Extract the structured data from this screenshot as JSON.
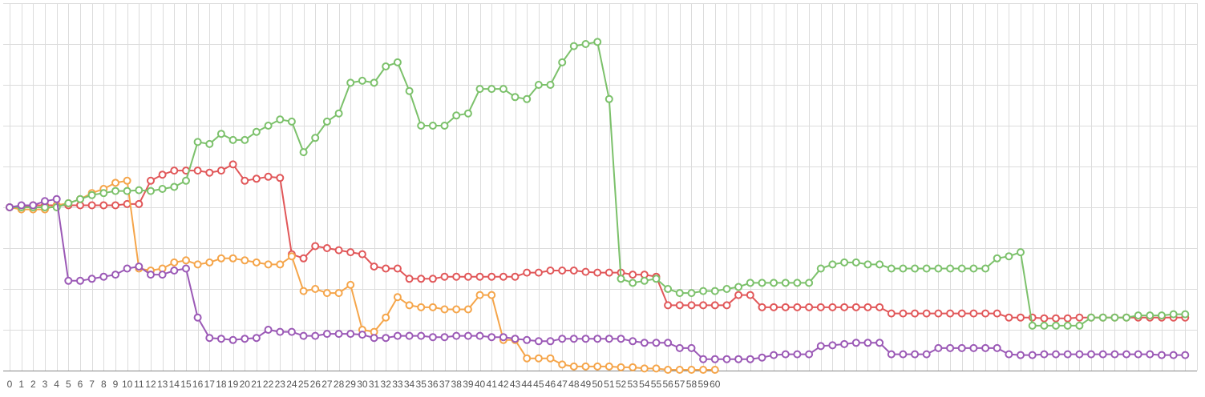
{
  "colors": {
    "background": "#ffffff",
    "grid": "#dcdcdc",
    "axis": "#888888",
    "tick_text": "#555555"
  },
  "chart_data": {
    "type": "line",
    "title": "",
    "xlabel": "",
    "ylabel": "",
    "grid": true,
    "legend": "none",
    "x_tick_labels": [
      "0",
      "1",
      "2",
      "3",
      "4",
      "5",
      "6",
      "7",
      "8",
      "9",
      "10",
      "11",
      "12",
      "13",
      "14",
      "15",
      "16",
      "17",
      "18",
      "19",
      "20",
      "21",
      "22",
      "23",
      "24",
      "25",
      "26",
      "27",
      "28",
      "29",
      "30",
      "31",
      "32",
      "33",
      "34",
      "35",
      "36",
      "37",
      "38",
      "39",
      "40",
      "41",
      "42",
      "43",
      "44",
      "45",
      "46",
      "47",
      "48",
      "49",
      "50",
      "51",
      "52",
      "53",
      "54",
      "55",
      "56",
      "57",
      "58",
      "59",
      "60"
    ],
    "xlim": [
      0,
      101
    ],
    "ylim": [
      0,
      9
    ],
    "series": [
      {
        "color": "#e15759",
        "x": [
          0,
          1,
          2,
          3,
          4,
          5,
          6,
          7,
          8,
          9,
          10,
          11,
          12,
          13,
          14,
          15,
          16,
          17,
          18,
          19,
          20,
          21,
          22,
          23,
          24,
          25,
          26,
          27,
          28,
          29,
          30,
          31,
          32,
          33,
          34,
          35,
          36,
          37,
          38,
          39,
          40,
          41,
          42,
          43,
          44,
          45,
          46,
          47,
          48,
          49,
          50,
          51,
          52,
          53,
          54,
          55,
          56,
          57,
          58,
          59,
          60,
          61,
          62,
          63,
          64,
          65,
          66,
          67,
          68,
          69,
          70,
          71,
          72,
          73,
          74,
          75,
          76,
          77,
          78,
          79,
          80,
          81,
          82,
          83,
          84,
          85,
          86,
          87,
          88,
          89,
          90,
          91,
          92,
          93,
          94,
          95,
          96,
          97,
          98,
          99,
          100
        ],
        "y": [
          4.0,
          4.0,
          4.05,
          4.05,
          4.05,
          4.05,
          4.05,
          4.05,
          4.05,
          4.05,
          4.08,
          4.08,
          4.65,
          4.8,
          4.9,
          4.9,
          4.9,
          4.85,
          4.9,
          5.05,
          4.65,
          4.7,
          4.75,
          4.72,
          2.85,
          2.75,
          3.05,
          3.0,
          2.95,
          2.9,
          2.85,
          2.55,
          2.5,
          2.5,
          2.25,
          2.25,
          2.25,
          2.3,
          2.3,
          2.3,
          2.3,
          2.3,
          2.3,
          2.3,
          2.4,
          2.4,
          2.45,
          2.45,
          2.45,
          2.42,
          2.4,
          2.4,
          2.4,
          2.35,
          2.35,
          2.3,
          1.6,
          1.6,
          1.6,
          1.6,
          1.6,
          1.6,
          1.85,
          1.85,
          1.55,
          1.55,
          1.55,
          1.55,
          1.55,
          1.55,
          1.55,
          1.55,
          1.55,
          1.55,
          1.55,
          1.4,
          1.4,
          1.4,
          1.4,
          1.4,
          1.4,
          1.4,
          1.4,
          1.4,
          1.4,
          1.3,
          1.3,
          1.3,
          1.28,
          1.28,
          1.28,
          1.3,
          1.3,
          1.3,
          1.3,
          1.3,
          1.3,
          1.3,
          1.3,
          1.3,
          1.3
        ]
      },
      {
        "color": "#f5a54a",
        "x": [
          0,
          1,
          2,
          3,
          4,
          5,
          6,
          7,
          8,
          9,
          10,
          11,
          12,
          13,
          14,
          15,
          16,
          17,
          18,
          19,
          20,
          21,
          22,
          23,
          24,
          25,
          26,
          27,
          28,
          29,
          30,
          31,
          32,
          33,
          34,
          35,
          36,
          37,
          38,
          39,
          40,
          41,
          42,
          43,
          44,
          45,
          46,
          47,
          48,
          49,
          50,
          51,
          52,
          53,
          54,
          55,
          56,
          57,
          58,
          59,
          60
        ],
        "y": [
          4.0,
          3.95,
          3.95,
          3.95,
          4.05,
          4.1,
          4.2,
          4.35,
          4.45,
          4.6,
          4.65,
          2.5,
          2.45,
          2.5,
          2.65,
          2.7,
          2.6,
          2.65,
          2.75,
          2.75,
          2.7,
          2.65,
          2.6,
          2.6,
          2.8,
          1.95,
          2.0,
          1.9,
          1.9,
          2.1,
          1.0,
          0.95,
          1.3,
          1.8,
          1.6,
          1.55,
          1.55,
          1.5,
          1.5,
          1.5,
          1.85,
          1.85,
          0.75,
          0.75,
          0.3,
          0.3,
          0.3,
          0.15,
          0.1,
          0.1,
          0.1,
          0.1,
          0.08,
          0.08,
          0.05,
          0.05,
          0.02,
          0.02,
          0.02,
          0.02,
          0.02
        ]
      },
      {
        "color": "#7cc16b",
        "x": [
          0,
          1,
          2,
          3,
          4,
          5,
          6,
          7,
          8,
          9,
          10,
          11,
          12,
          13,
          14,
          15,
          16,
          17,
          18,
          19,
          20,
          21,
          22,
          23,
          24,
          25,
          26,
          27,
          28,
          29,
          30,
          31,
          32,
          33,
          34,
          35,
          36,
          37,
          38,
          39,
          40,
          41,
          42,
          43,
          44,
          45,
          46,
          47,
          48,
          49,
          50,
          51,
          52,
          53,
          54,
          55,
          56,
          57,
          58,
          59,
          60,
          61,
          62,
          63,
          64,
          65,
          66,
          67,
          68,
          69,
          70,
          71,
          72,
          73,
          74,
          75,
          76,
          77,
          78,
          79,
          80,
          81,
          82,
          83,
          84,
          85,
          86,
          87,
          88,
          89,
          90,
          91,
          92,
          93,
          94,
          95,
          96,
          97,
          98,
          99,
          100
        ],
        "y": [
          4.0,
          4.0,
          4.0,
          4.0,
          4.0,
          4.1,
          4.2,
          4.3,
          4.35,
          4.4,
          4.4,
          4.42,
          4.4,
          4.45,
          4.5,
          4.65,
          5.6,
          5.55,
          5.8,
          5.65,
          5.65,
          5.85,
          6.0,
          6.15,
          6.1,
          5.35,
          5.7,
          6.1,
          6.3,
          7.05,
          7.1,
          7.05,
          7.45,
          7.55,
          6.85,
          6.0,
          6.0,
          6.0,
          6.25,
          6.3,
          6.9,
          6.9,
          6.9,
          6.7,
          6.65,
          7.0,
          7.0,
          7.55,
          7.95,
          8.0,
          8.05,
          6.65,
          2.25,
          2.15,
          2.2,
          2.25,
          2.0,
          1.9,
          1.9,
          1.95,
          1.95,
          2.0,
          2.05,
          2.15,
          2.15,
          2.15,
          2.15,
          2.15,
          2.15,
          2.5,
          2.6,
          2.65,
          2.65,
          2.6,
          2.6,
          2.5,
          2.5,
          2.5,
          2.5,
          2.5,
          2.5,
          2.5,
          2.5,
          2.5,
          2.75,
          2.8,
          2.9,
          1.1,
          1.1,
          1.1,
          1.1,
          1.1,
          1.3,
          1.3,
          1.3,
          1.3,
          1.35,
          1.35,
          1.35,
          1.38,
          1.38
        ]
      },
      {
        "color": "#9b59b6",
        "x": [
          0,
          1,
          2,
          3,
          4,
          5,
          6,
          7,
          8,
          9,
          10,
          11,
          12,
          13,
          14,
          15,
          16,
          17,
          18,
          19,
          20,
          21,
          22,
          23,
          24,
          25,
          26,
          27,
          28,
          29,
          30,
          31,
          32,
          33,
          34,
          35,
          36,
          37,
          38,
          39,
          40,
          41,
          42,
          43,
          44,
          45,
          46,
          47,
          48,
          49,
          50,
          51,
          52,
          53,
          54,
          55,
          56,
          57,
          58,
          59,
          60,
          61,
          62,
          63,
          64,
          65,
          66,
          67,
          68,
          69,
          70,
          71,
          72,
          73,
          74,
          75,
          76,
          77,
          78,
          79,
          80,
          81,
          82,
          83,
          84,
          85,
          86,
          87,
          88,
          89,
          90,
          91,
          92,
          93,
          94,
          95,
          96,
          97,
          98,
          99,
          100
        ],
        "y": [
          4.0,
          4.05,
          4.05,
          4.15,
          4.2,
          2.2,
          2.2,
          2.25,
          2.3,
          2.35,
          2.5,
          2.55,
          2.35,
          2.35,
          2.45,
          2.5,
          1.3,
          0.8,
          0.78,
          0.75,
          0.78,
          0.8,
          1.0,
          0.95,
          0.95,
          0.85,
          0.85,
          0.9,
          0.9,
          0.9,
          0.88,
          0.8,
          0.8,
          0.85,
          0.85,
          0.85,
          0.82,
          0.82,
          0.85,
          0.85,
          0.85,
          0.82,
          0.82,
          0.78,
          0.75,
          0.72,
          0.72,
          0.78,
          0.78,
          0.78,
          0.78,
          0.78,
          0.78,
          0.72,
          0.68,
          0.68,
          0.68,
          0.55,
          0.55,
          0.28,
          0.28,
          0.28,
          0.28,
          0.28,
          0.32,
          0.38,
          0.4,
          0.4,
          0.4,
          0.6,
          0.62,
          0.65,
          0.68,
          0.68,
          0.68,
          0.4,
          0.4,
          0.4,
          0.4,
          0.55,
          0.55,
          0.55,
          0.55,
          0.55,
          0.55,
          0.4,
          0.38,
          0.38,
          0.4,
          0.4,
          0.4,
          0.4,
          0.4,
          0.4,
          0.4,
          0.4,
          0.4,
          0.4,
          0.38,
          0.38,
          0.38
        ]
      }
    ]
  }
}
